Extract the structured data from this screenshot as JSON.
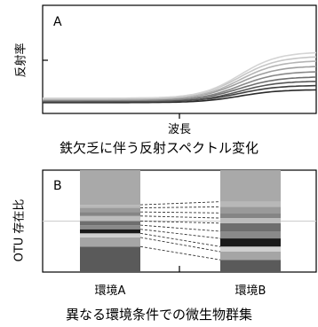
{
  "chart_data": [
    {
      "panel_label": "A",
      "type": "line",
      "title": "鉄欠乏に伴う反射スペクトル変化",
      "xlabel": "波長",
      "ylabel": "反射率",
      "ylim": [
        0,
        1
      ],
      "y_ticks": [
        0.5
      ],
      "grid": false,
      "legend": "none",
      "series": [
        {
          "baseline": 0.1,
          "plateau": 0.22,
          "color": "#2a2a2a"
        },
        {
          "baseline": 0.11,
          "plateau": 0.26,
          "color": "#3c3c3c"
        },
        {
          "baseline": 0.11,
          "plateau": 0.3,
          "color": "#555555"
        },
        {
          "baseline": 0.12,
          "plateau": 0.34,
          "color": "#6e6e6e"
        },
        {
          "baseline": 0.12,
          "plateau": 0.39,
          "color": "#888888"
        },
        {
          "baseline": 0.13,
          "plateau": 0.44,
          "color": "#9e9e9e"
        },
        {
          "baseline": 0.13,
          "plateau": 0.49,
          "color": "#b4b4b4"
        },
        {
          "baseline": 0.14,
          "plateau": 0.53,
          "color": "#c6c6c6"
        },
        {
          "baseline": 0.14,
          "plateau": 0.57,
          "color": "#d4d4d4"
        }
      ]
    },
    {
      "panel_label": "B",
      "type": "bar",
      "stacked": true,
      "title": "異なる環境条件での微生物群集",
      "xlabel": "",
      "ylabel": "OTU 存在比",
      "categories": [
        "環境A",
        "環境B"
      ],
      "reference_line": 0.5,
      "segment_colors": [
        "#5a5a5a",
        "#a5a5a5",
        "#cfcfcf",
        "#1a1a1a",
        "#8a8a8a",
        "#6e6e6e",
        "#bcbcbc",
        "#858585",
        "#9a9a9a",
        "#b8b8b8",
        "#a9a9a9"
      ],
      "series": [
        {
          "name": "",
          "values": [
            0.25,
            0.12
          ]
        },
        {
          "name": "",
          "values": [
            0.09,
            0.08
          ]
        },
        {
          "name": "",
          "values": [
            0.04,
            0.05
          ]
        },
        {
          "name": "",
          "values": [
            0.04,
            0.08
          ]
        },
        {
          "name": "",
          "values": [
            0.04,
            0.07
          ]
        },
        {
          "name": "",
          "values": [
            0.04,
            0.08
          ]
        },
        {
          "name": "",
          "values": [
            0.05,
            0.05
          ]
        },
        {
          "name": "",
          "values": [
            0.04,
            0.05
          ]
        },
        {
          "name": "",
          "values": [
            0.04,
            0.06
          ]
        },
        {
          "name": "",
          "values": [
            0.03,
            0.05
          ]
        },
        {
          "name": "",
          "values": [
            0.34,
            0.31
          ]
        }
      ]
    }
  ]
}
